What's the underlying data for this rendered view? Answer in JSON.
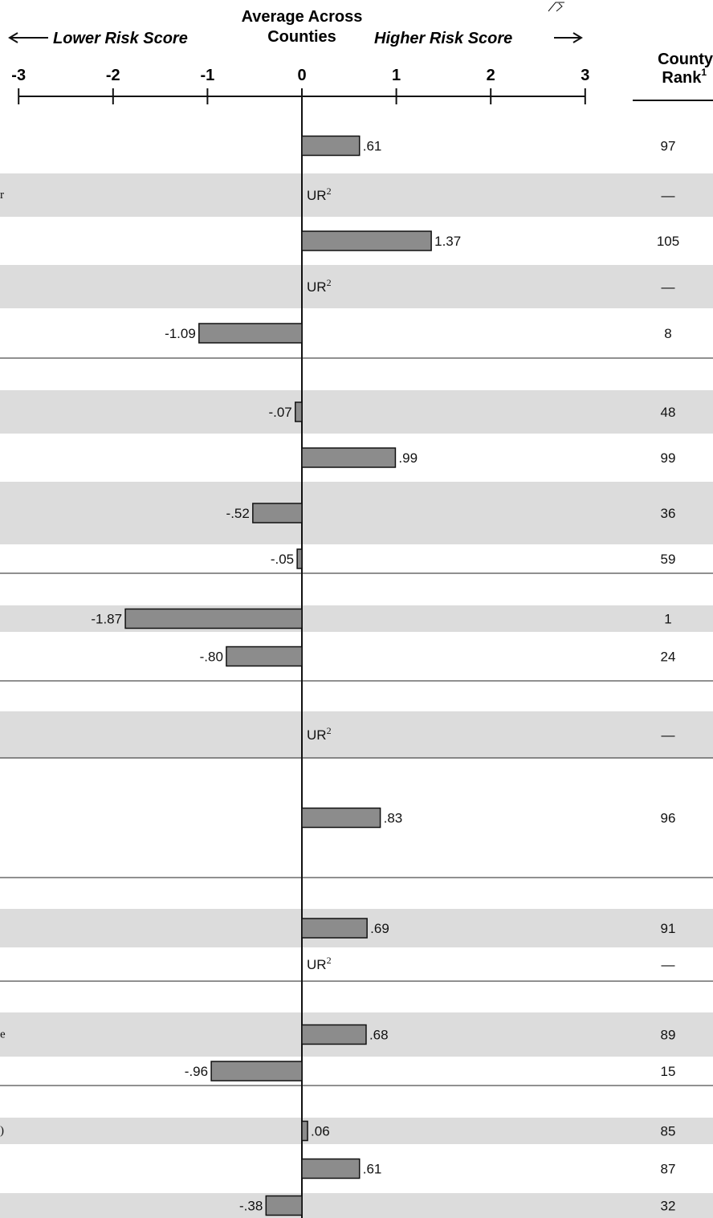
{
  "header": {
    "center_line1": "Average Across",
    "center_line2": "Counties",
    "lower": "Lower Risk Score",
    "higher": "Higher Risk Score",
    "rank_line1": "County",
    "rank_line2": "Rank",
    "rank_sup": "1",
    "ur_sup": "2"
  },
  "chart_data": {
    "type": "bar",
    "orientation": "horizontal",
    "xlim": [
      -3,
      3
    ],
    "xticks": [
      -3,
      -2,
      -1,
      0,
      1,
      2,
      3
    ],
    "zero_line": true,
    "rows": [
      {
        "label": "",
        "value": 0.61,
        "display": ".61",
        "rank": "97",
        "shaded": false
      },
      {
        "label": "r",
        "value": null,
        "display": "UR",
        "rank": "—",
        "shaded": true
      },
      {
        "label": "",
        "value": 1.37,
        "display": "1.37",
        "rank": "105",
        "shaded": false
      },
      {
        "label": "",
        "value": null,
        "display": "UR",
        "rank": "—",
        "shaded": true
      },
      {
        "label": "",
        "value": -1.09,
        "display": "-1.09",
        "rank": "8",
        "shaded": false
      },
      {
        "label": "",
        "value": -0.07,
        "display": "-.07",
        "rank": "48",
        "shaded": true
      },
      {
        "label": "",
        "value": 0.99,
        "display": ".99",
        "rank": "99",
        "shaded": false
      },
      {
        "label": "",
        "value": -0.52,
        "display": "-.52",
        "rank": "36",
        "shaded": true
      },
      {
        "label": "",
        "value": -0.05,
        "display": "-.05",
        "rank": "59",
        "shaded": false
      },
      {
        "label": "",
        "value": -1.87,
        "display": "-1.87",
        "rank": "1",
        "shaded": true
      },
      {
        "label": "",
        "value": -0.8,
        "display": "-.80",
        "rank": "24",
        "shaded": false
      },
      {
        "label": "",
        "value": null,
        "display": "UR",
        "rank": "—",
        "shaded": true
      },
      {
        "label": "",
        "value": 0.83,
        "display": ".83",
        "rank": "96",
        "shaded": false
      },
      {
        "label": "",
        "value": 0.69,
        "display": ".69",
        "rank": "91",
        "shaded": true
      },
      {
        "label": "",
        "value": null,
        "display": "UR",
        "rank": "—",
        "shaded": false
      },
      {
        "label": "e",
        "value": 0.68,
        "display": ".68",
        "rank": "89",
        "shaded": true
      },
      {
        "label": "",
        "value": -0.96,
        "display": "-.96",
        "rank": "15",
        "shaded": false
      },
      {
        "label": ")",
        "value": 0.06,
        "display": ".06",
        "rank": "85",
        "shaded": true
      },
      {
        "label": "",
        "value": 0.61,
        "display": ".61",
        "rank": "87",
        "shaded": false
      },
      {
        "label": "",
        "value": -0.38,
        "display": "-.38",
        "rank": "32",
        "shaded": true
      }
    ]
  },
  "colors": {
    "bar_fill": "#8c8c8c",
    "bar_stroke": "#111111",
    "row_shade": "#dcdcdc",
    "axis": "#111111"
  }
}
